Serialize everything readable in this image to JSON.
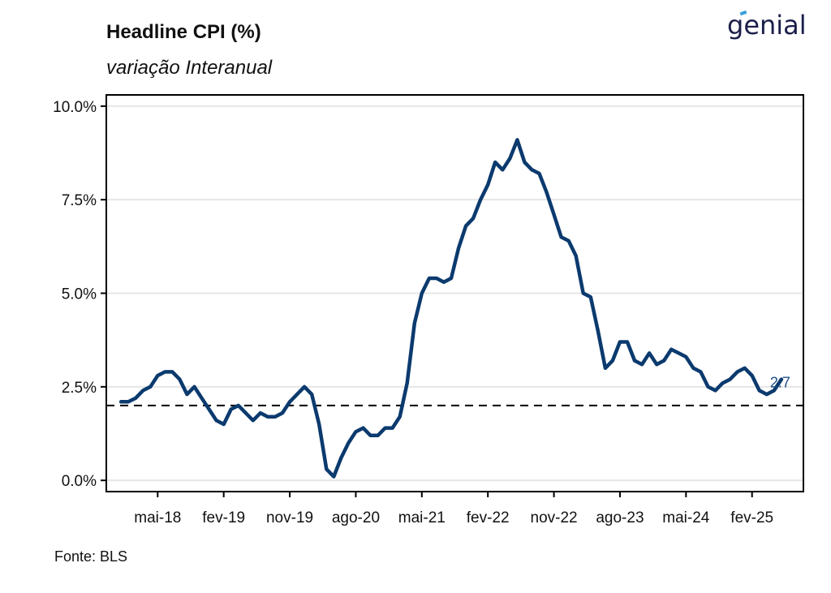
{
  "header": {
    "title": "Headline CPI (%)",
    "subtitle": "variação Interanual",
    "logo_text": "genial"
  },
  "footer": {
    "source": "Fonte: BLS"
  },
  "colors": {
    "line": "#0b3a6e",
    "reference_line": "#000000",
    "grid": "#e6e6e6",
    "end_label": "#1f4f8a",
    "logo": "#1b1f4a",
    "logo_accent": "#3aa0d8"
  },
  "chart_data": {
    "type": "line",
    "title": "Headline CPI (%)",
    "subtitle": "variação Interanual",
    "xlabel": "",
    "ylabel": "",
    "x_tick_labels": [
      "mai-18",
      "fev-19",
      "nov-19",
      "ago-20",
      "mai-21",
      "fev-22",
      "nov-22",
      "ago-23",
      "mai-24",
      "fev-25"
    ],
    "y_tick_labels": [
      "0.0%",
      "2.5%",
      "5.0%",
      "7.5%",
      "10.0%"
    ],
    "y_ticks": [
      0,
      2.5,
      5,
      7.5,
      10
    ],
    "ylim": [
      -0.3,
      10.3
    ],
    "xlim": [
      "2017-10",
      "2025-09"
    ],
    "grid": "horizontal",
    "reference_line": {
      "y": 2.0,
      "style": "dashed"
    },
    "end_label": "2.7",
    "series": [
      {
        "x": [
          "2017-12",
          "2018-01",
          "2018-02",
          "2018-03",
          "2018-04",
          "2018-05",
          "2018-06",
          "2018-07",
          "2018-08",
          "2018-09",
          "2018-10",
          "2018-11",
          "2018-12",
          "2019-01",
          "2019-02",
          "2019-03",
          "2019-04",
          "2019-05",
          "2019-06",
          "2019-07",
          "2019-08",
          "2019-09",
          "2019-10",
          "2019-11",
          "2019-12",
          "2020-01",
          "2020-02",
          "2020-03",
          "2020-04",
          "2020-05",
          "2020-06",
          "2020-07",
          "2020-08",
          "2020-09",
          "2020-10",
          "2020-11",
          "2020-12",
          "2021-01",
          "2021-02",
          "2021-03",
          "2021-04",
          "2021-05",
          "2021-06",
          "2021-07",
          "2021-08",
          "2021-09",
          "2021-10",
          "2021-11",
          "2021-12",
          "2022-01",
          "2022-02",
          "2022-03",
          "2022-04",
          "2022-05",
          "2022-06",
          "2022-07",
          "2022-08",
          "2022-09",
          "2022-10",
          "2022-11",
          "2022-12",
          "2023-01",
          "2023-02",
          "2023-03",
          "2023-04",
          "2023-05",
          "2023-06",
          "2023-07",
          "2023-08",
          "2023-09",
          "2023-10",
          "2023-11",
          "2023-12",
          "2024-01",
          "2024-02",
          "2024-03",
          "2024-04",
          "2024-05",
          "2024-06",
          "2024-07",
          "2024-08",
          "2024-09",
          "2024-10",
          "2024-11",
          "2024-12",
          "2025-01",
          "2025-02",
          "2025-03",
          "2025-04",
          "2025-05",
          "2025-06"
        ],
        "values": [
          2.1,
          2.1,
          2.2,
          2.4,
          2.5,
          2.8,
          2.9,
          2.9,
          2.7,
          2.3,
          2.5,
          2.2,
          1.9,
          1.6,
          1.5,
          1.9,
          2.0,
          1.8,
          1.6,
          1.8,
          1.7,
          1.7,
          1.8,
          2.1,
          2.3,
          2.5,
          2.3,
          1.5,
          0.3,
          0.1,
          0.6,
          1.0,
          1.3,
          1.4,
          1.2,
          1.2,
          1.4,
          1.4,
          1.7,
          2.6,
          4.2,
          5.0,
          5.4,
          5.4,
          5.3,
          5.4,
          6.2,
          6.8,
          7.0,
          7.5,
          7.9,
          8.5,
          8.3,
          8.6,
          9.1,
          8.5,
          8.3,
          8.2,
          7.7,
          7.1,
          6.5,
          6.4,
          6.0,
          5.0,
          4.9,
          4.0,
          3.0,
          3.2,
          3.7,
          3.7,
          3.2,
          3.1,
          3.4,
          3.1,
          3.2,
          3.5,
          3.4,
          3.3,
          3.0,
          2.9,
          2.5,
          2.4,
          2.6,
          2.7,
          2.9,
          3.0,
          2.8,
          2.4,
          2.3,
          2.4,
          2.7
        ]
      }
    ]
  }
}
